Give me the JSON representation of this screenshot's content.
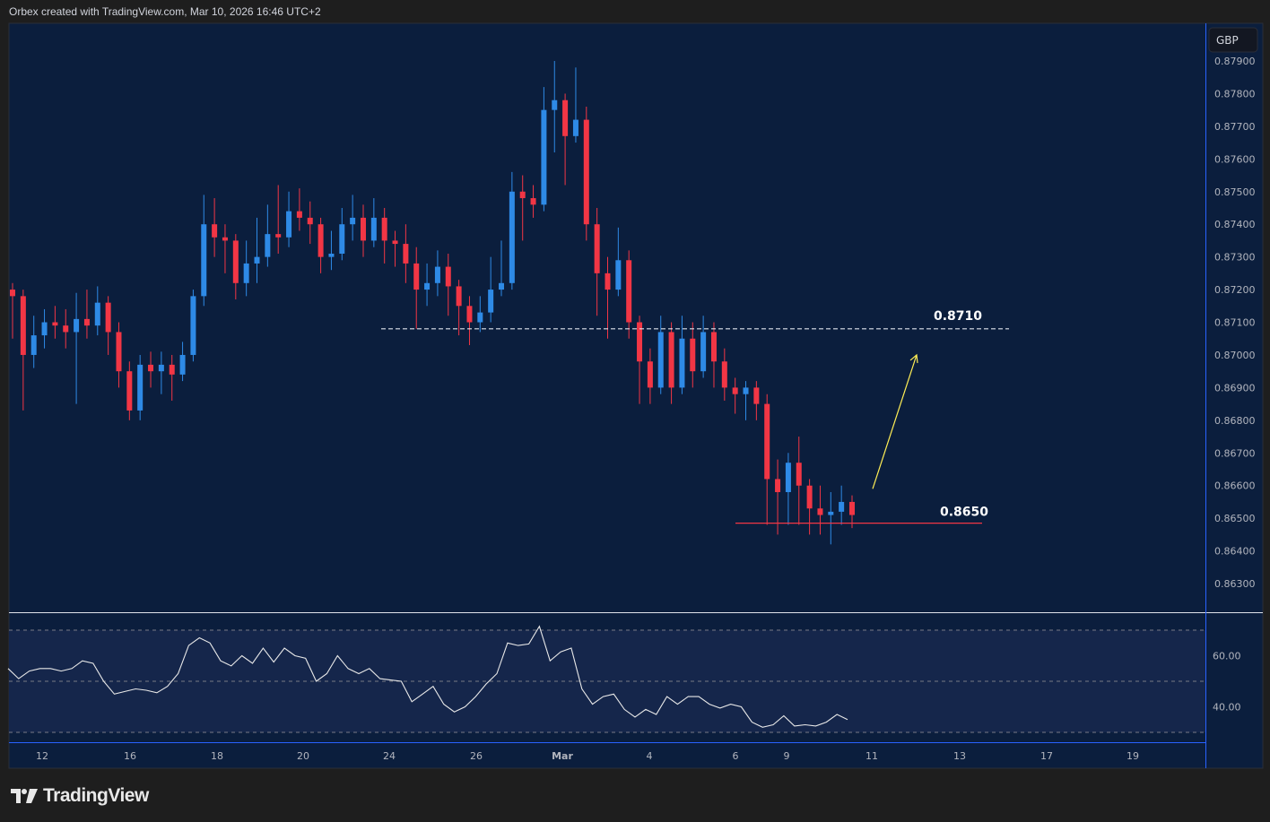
{
  "header": {
    "attribution": "Orbex created with TradingView.com, Mar 10, 2026 16:46 UTC+2"
  },
  "footer": {
    "logo_text": "TradingView"
  },
  "colors": {
    "background": "#0b1e3d",
    "rsi_band": "#15264b",
    "up": "#2e8ae6",
    "down": "#f23645",
    "support": "#f23645",
    "arrow": "#ffee55"
  },
  "chart_data": [
    {
      "type": "candlestick",
      "currency_label": "GBP",
      "ylim": [
        0.8625,
        0.8795
      ],
      "y_ticks": [
        "0.87900",
        "0.87800",
        "0.87700",
        "0.87600",
        "0.87500",
        "0.87400",
        "0.87300",
        "0.87200",
        "0.87100",
        "0.87000",
        "0.86900",
        "0.86800",
        "0.86700",
        "0.86600",
        "0.86500",
        "0.86400",
        "0.86300"
      ],
      "x_ticks": [
        "12",
        "16",
        "18",
        "20",
        "24",
        "26",
        "Mar",
        "4",
        "6",
        "9",
        "11",
        "13",
        "17",
        "19"
      ],
      "first_open": 0.872,
      "close": [
        0.8718,
        0.87,
        0.8706,
        0.871,
        0.8709,
        0.8707,
        0.8711,
        0.8709,
        0.8716,
        0.8707,
        0.8695,
        0.8683,
        0.8697,
        0.8695,
        0.8697,
        0.8694,
        0.87,
        0.8718,
        0.874,
        0.8736,
        0.8735,
        0.8722,
        0.8728,
        0.873,
        0.8737,
        0.8736,
        0.8744,
        0.8742,
        0.874,
        0.873,
        0.8731,
        0.874,
        0.8742,
        0.8735,
        0.8742,
        0.8735,
        0.8734,
        0.8728,
        0.872,
        0.8722,
        0.8727,
        0.8721,
        0.8715,
        0.871,
        0.8713,
        0.872,
        0.8722,
        0.875,
        0.8748,
        0.8746,
        0.8775,
        0.8778,
        0.8767,
        0.8772,
        0.874,
        0.8725,
        0.872,
        0.8729,
        0.871,
        0.8698,
        0.869,
        0.8707,
        0.869,
        0.8705,
        0.8695,
        0.8707,
        0.8698,
        0.869,
        0.8688,
        0.869,
        0.8685,
        0.8662,
        0.8658,
        0.8667,
        0.866,
        0.8653,
        0.8651,
        0.8652,
        0.8655,
        0.8651
      ],
      "high": [
        0.8722,
        0.872,
        0.8712,
        0.8714,
        0.8715,
        0.8714,
        0.8719,
        0.872,
        0.8721,
        0.8718,
        0.871,
        0.8698,
        0.87,
        0.8701,
        0.8701,
        0.87,
        0.8704,
        0.872,
        0.8749,
        0.8748,
        0.874,
        0.8737,
        0.8735,
        0.8742,
        0.8746,
        0.8752,
        0.875,
        0.8751,
        0.8747,
        0.8742,
        0.8738,
        0.8745,
        0.8749,
        0.8746,
        0.8748,
        0.8745,
        0.8738,
        0.874,
        0.8733,
        0.8728,
        0.8732,
        0.8731,
        0.8723,
        0.8718,
        0.8718,
        0.873,
        0.8735,
        0.8756,
        0.8755,
        0.8752,
        0.8782,
        0.879,
        0.878,
        0.8788,
        0.8776,
        0.8745,
        0.873,
        0.8739,
        0.8732,
        0.8712,
        0.8702,
        0.8712,
        0.871,
        0.8712,
        0.871,
        0.8712,
        0.871,
        0.8702,
        0.8693,
        0.8692,
        0.8692,
        0.8688,
        0.8668,
        0.867,
        0.8675,
        0.8662,
        0.866,
        0.8658,
        0.866,
        0.8657
      ],
      "low": [
        0.8705,
        0.8683,
        0.8696,
        0.8702,
        0.8705,
        0.8702,
        0.8685,
        0.8705,
        0.8706,
        0.87,
        0.869,
        0.868,
        0.868,
        0.869,
        0.8688,
        0.8686,
        0.8692,
        0.8698,
        0.8715,
        0.873,
        0.8725,
        0.8717,
        0.8718,
        0.8722,
        0.8727,
        0.8731,
        0.8733,
        0.8738,
        0.8734,
        0.8725,
        0.8726,
        0.8729,
        0.8735,
        0.873,
        0.8733,
        0.8728,
        0.8727,
        0.8722,
        0.8708,
        0.8715,
        0.8718,
        0.8712,
        0.8706,
        0.8703,
        0.8707,
        0.871,
        0.8718,
        0.872,
        0.8735,
        0.8742,
        0.8744,
        0.8762,
        0.8752,
        0.8765,
        0.8735,
        0.8712,
        0.8705,
        0.8718,
        0.8705,
        0.8685,
        0.8685,
        0.8688,
        0.8685,
        0.8688,
        0.869,
        0.8693,
        0.869,
        0.8686,
        0.8682,
        0.868,
        0.868,
        0.8648,
        0.8645,
        0.8648,
        0.8648,
        0.8645,
        0.8645,
        0.8642,
        0.8648,
        0.8647
      ],
      "annotations": [
        {
          "kind": "resistance-dashed",
          "price": 0.8708,
          "label": "0.8710"
        },
        {
          "kind": "support",
          "price": 0.86485,
          "label": "0.8650"
        },
        {
          "kind": "arrow-up",
          "from_price": 0.8659,
          "to_price": 0.87
        }
      ]
    },
    {
      "type": "line",
      "indicator": "RSI",
      "ylim": [
        27,
        75
      ],
      "levels": [
        70,
        50,
        30
      ],
      "y_ticks": [
        "60.00",
        "40.00"
      ],
      "values": [
        55,
        51,
        54,
        55,
        55,
        54,
        55,
        58,
        57,
        50,
        45,
        46,
        47,
        46.5,
        45.5,
        48,
        53,
        64,
        67,
        65,
        58,
        56,
        60,
        57,
        63,
        57.5,
        63,
        60,
        59,
        50,
        53,
        60,
        55,
        53,
        55,
        51,
        50.5,
        50,
        42,
        45,
        48,
        41,
        38,
        40,
        44,
        49,
        53,
        65,
        64,
        64.6,
        71.5,
        58,
        61.5,
        63,
        47,
        41,
        44,
        45,
        39,
        36,
        39,
        37,
        44,
        41,
        44,
        44,
        41,
        39.5,
        41,
        40,
        34,
        32,
        33,
        36.5,
        32.5,
        33,
        32.5,
        34,
        37,
        35
      ]
    }
  ]
}
